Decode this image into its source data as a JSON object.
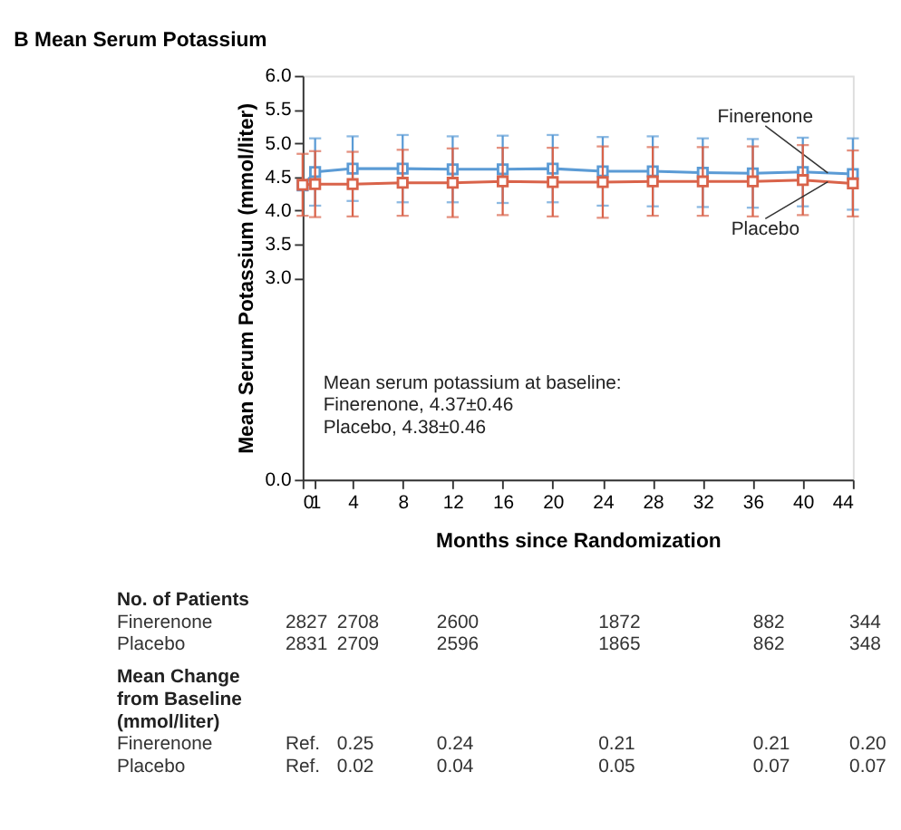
{
  "chart_data": {
    "type": "line",
    "title": "B  Mean Serum Potassium",
    "xlabel": "Months since Randomization",
    "ylabel": "Mean Serum Potassium (mmol/liter)",
    "x": [
      0,
      1,
      4,
      8,
      12,
      16,
      20,
      24,
      28,
      32,
      36,
      40,
      44
    ],
    "xlim": [
      0,
      44
    ],
    "xticks": [
      {
        "value": 0,
        "label": "0"
      },
      {
        "value": 1,
        "label": "1"
      },
      4,
      8,
      12,
      16,
      20,
      24,
      28,
      32,
      36,
      40,
      44
    ],
    "ylim": [
      0.0,
      6.0
    ],
    "yticks": [
      {
        "value": 0,
        "label": "0.0"
      },
      {
        "value": 3,
        "label": "3.0"
      },
      3.5,
      {
        "value": 4,
        "label": "4.0"
      },
      4.5,
      {
        "value": 5,
        "label": "5.0"
      },
      5.5,
      {
        "value": 6,
        "label": "6.0"
      }
    ],
    "series": [
      {
        "name": "Finerenone",
        "color": "#5b9bd5",
        "values": [
          4.37,
          4.57,
          4.62,
          4.62,
          4.61,
          4.61,
          4.62,
          4.58,
          4.58,
          4.56,
          4.55,
          4.57,
          4.54
        ],
        "errors": [
          null,
          0.5,
          0.48,
          0.5,
          0.49,
          0.5,
          0.5,
          0.51,
          0.52,
          0.51,
          0.51,
          0.51,
          0.53
        ]
      },
      {
        "name": "Placebo",
        "color": "#d9634a",
        "values": [
          4.38,
          4.39,
          4.39,
          4.41,
          4.41,
          4.43,
          4.42,
          4.42,
          4.43,
          4.43,
          4.43,
          4.45,
          4.4
        ],
        "errors": [
          0.46,
          0.49,
          0.48,
          0.49,
          0.51,
          0.5,
          0.51,
          0.53,
          0.51,
          0.51,
          0.52,
          0.52,
          0.49
        ]
      }
    ],
    "marker": "square",
    "grid": false,
    "annotations": [
      "Mean serum potassium at baseline:\n   Finerenone, 4.37±0.46\n   Placebo, 4.38±0.46",
      "No. of Patients",
      "Finerenone          2827  2708        2600                 1872                  882         344",
      "Placebo               2831  2709        2596                 1865                  862         348",
      "Mean Change\n   from Baseline\n   (mmol/liter)",
      "Finerenone            Ref.   0.25         0.24                  0.21                  0.21        0.20",
      "Placebo                 Ref.   0.02         0.04                  0.05                  0.07        0.07"
    ]
  }
}
